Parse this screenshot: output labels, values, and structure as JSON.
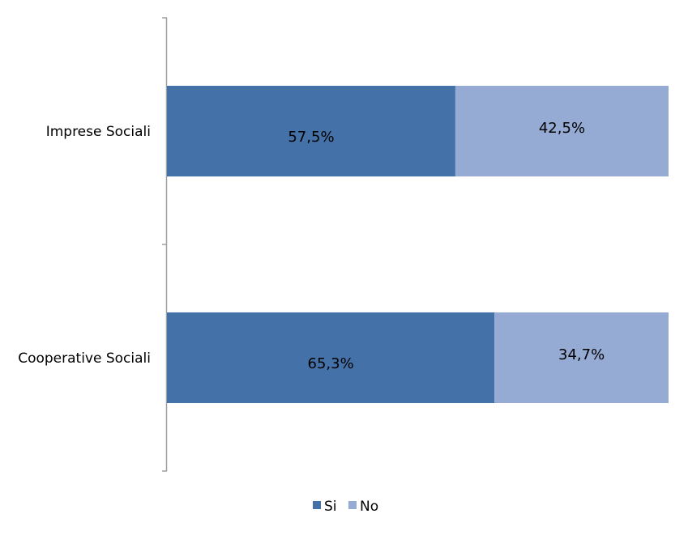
{
  "chart_data": {
    "type": "bar",
    "orientation": "horizontal",
    "stacked": "percent",
    "categories": [
      "Imprese Sociali",
      "Cooperative Sociali"
    ],
    "series": [
      {
        "name": "Si",
        "values": [
          57.5,
          65.3
        ],
        "labels": [
          "57,5%",
          "65,3%"
        ],
        "color": "#4472a8"
      },
      {
        "name": "No",
        "values": [
          42.5,
          34.7
        ],
        "labels": [
          "42,5%",
          "34,7%"
        ],
        "color": "#95abd4"
      }
    ],
    "title": "",
    "xlabel": "",
    "ylabel": "",
    "xlim": [
      0,
      100
    ],
    "grid": false,
    "legend_position": "bottom",
    "axis_color": "#a0a0a0"
  }
}
